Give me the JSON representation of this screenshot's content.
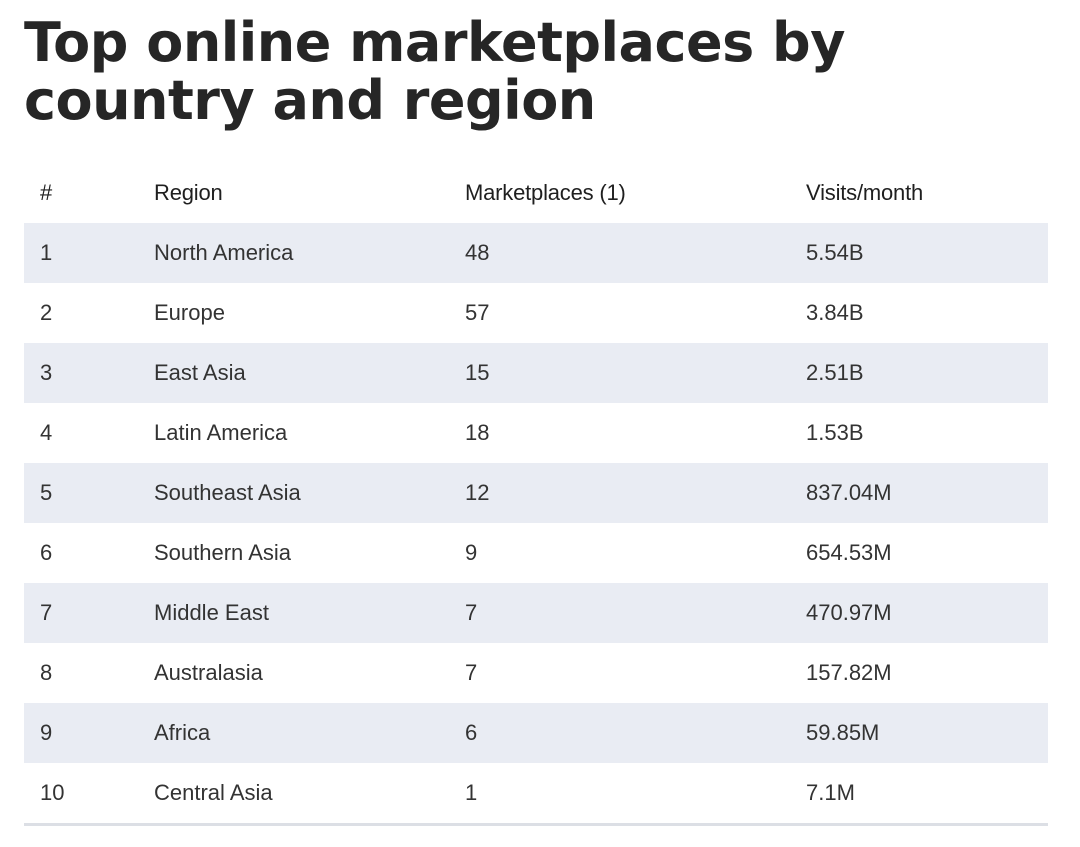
{
  "title": "Top online marketplaces by country and region",
  "table": {
    "headers": [
      "#",
      "Region",
      "Marketplaces (1)",
      "Visits/month"
    ],
    "rows": [
      {
        "rank": "1",
        "region": "North America",
        "marketplaces": "48",
        "visits": "5.54B"
      },
      {
        "rank": "2",
        "region": "Europe",
        "marketplaces": "57",
        "visits": "3.84B"
      },
      {
        "rank": "3",
        "region": "East Asia",
        "marketplaces": "15",
        "visits": "2.51B"
      },
      {
        "rank": "4",
        "region": "Latin America",
        "marketplaces": "18",
        "visits": "1.53B"
      },
      {
        "rank": "5",
        "region": "Southeast Asia",
        "marketplaces": "12",
        "visits": "837.04M"
      },
      {
        "rank": "6",
        "region": "Southern Asia",
        "marketplaces": "9",
        "visits": "654.53M"
      },
      {
        "rank": "7",
        "region": "Middle East",
        "marketplaces": "7",
        "visits": "470.97M"
      },
      {
        "rank": "8",
        "region": "Australasia",
        "marketplaces": "7",
        "visits": "157.82M"
      },
      {
        "rank": "9",
        "region": "Africa",
        "marketplaces": "6",
        "visits": "59.85M"
      },
      {
        "rank": "10",
        "region": "Central Asia",
        "marketplaces": "1",
        "visits": "7.1M"
      }
    ]
  },
  "colors": {
    "stripe": "#e9ecf3",
    "text": "#333333",
    "title": "#262626"
  }
}
